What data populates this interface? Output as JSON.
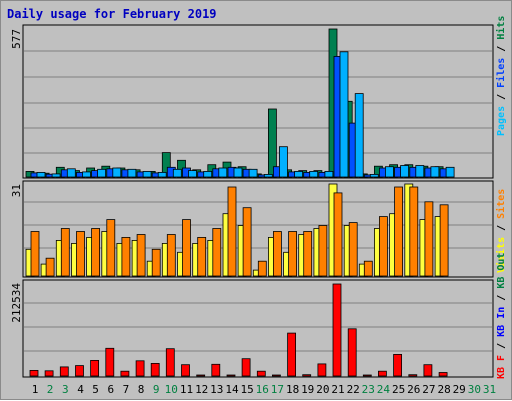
{
  "title": "Daily usage for February 2019",
  "chart_data": [
    {
      "type": "bar",
      "panel": "top",
      "y_max_label": "577",
      "ylim": [
        0,
        577
      ],
      "legend": [
        {
          "label": "Pages",
          "color": "#00c0ff"
        },
        {
          "label": "Files",
          "color": "#0040ff"
        },
        {
          "label": "Hits",
          "color": "#008040"
        }
      ],
      "categories": [
        "1",
        "2",
        "3",
        "4",
        "5",
        "6",
        "7",
        "8",
        "9",
        "10",
        "11",
        "12",
        "13",
        "14",
        "15",
        "16",
        "17",
        "18",
        "19",
        "20",
        "21",
        "22",
        "23",
        "24",
        "25",
        "26",
        "27",
        "28",
        "29",
        "30",
        "31"
      ],
      "series": [
        {
          "name": "Hits",
          "color": "#008050",
          "values": [
            22,
            15,
            38,
            25,
            35,
            42,
            35,
            28,
            22,
            95,
            65,
            28,
            48,
            58,
            40,
            12,
            265,
            28,
            25,
            25,
            577,
            295,
            12,
            42,
            48,
            48,
            42,
            40,
            0,
            0,
            0
          ]
        },
        {
          "name": "Files",
          "color": "#0050ff",
          "values": [
            16,
            11,
            28,
            18,
            25,
            32,
            28,
            20,
            16,
            38,
            35,
            20,
            32,
            38,
            30,
            8,
            40,
            20,
            18,
            18,
            470,
            210,
            8,
            35,
            38,
            38,
            35,
            32,
            0,
            0,
            0
          ]
        },
        {
          "name": "Pages",
          "color": "#00b0ff",
          "values": [
            18,
            12,
            32,
            20,
            30,
            35,
            30,
            22,
            18,
            30,
            25,
            22,
            35,
            35,
            30,
            10,
            118,
            22,
            22,
            22,
            488,
            325,
            10,
            40,
            45,
            45,
            40,
            38,
            0,
            0,
            0
          ]
        }
      ]
    },
    {
      "type": "bar",
      "panel": "middle",
      "y_max_label": "31",
      "ylim": [
        0,
        31
      ],
      "legend": [
        {
          "label": "Visits",
          "color": "#ffff00"
        },
        {
          "label": "Sites",
          "color": "#ff8000"
        }
      ],
      "categories": [
        "1",
        "2",
        "3",
        "4",
        "5",
        "6",
        "7",
        "8",
        "9",
        "10",
        "11",
        "12",
        "13",
        "14",
        "15",
        "16",
        "17",
        "18",
        "19",
        "20",
        "21",
        "22",
        "23",
        "24",
        "25",
        "26",
        "27",
        "28",
        "29",
        "30",
        "31"
      ],
      "series": [
        {
          "name": "Visits",
          "color": "#ffff40",
          "values": [
            9,
            4,
            12,
            11,
            13,
            15,
            11,
            12,
            5,
            11,
            8,
            11,
            12,
            21,
            17,
            2,
            13,
            8,
            14,
            16,
            31,
            17,
            4,
            16,
            21,
            31,
            19,
            20,
            0,
            0,
            0
          ]
        },
        {
          "name": "Sites",
          "color": "#ff8000",
          "values": [
            15,
            6,
            16,
            15,
            16,
            19,
            13,
            14,
            9,
            14,
            19,
            13,
            16,
            30,
            23,
            5,
            15,
            15,
            15,
            17,
            28,
            18,
            5,
            20,
            30,
            30,
            25,
            24,
            0,
            0,
            0
          ]
        }
      ]
    },
    {
      "type": "bar",
      "panel": "bottom",
      "y_max_label": "212534",
      "ylim": [
        0,
        212534
      ],
      "legend": [
        {
          "label": "KB F",
          "color": "#ff0000"
        },
        {
          "label": "KB In",
          "color": "#0000ff"
        },
        {
          "label": "KB Out",
          "color": "#008040"
        }
      ],
      "categories": [
        "1",
        "2",
        "3",
        "4",
        "5",
        "6",
        "7",
        "8",
        "9",
        "10",
        "11",
        "12",
        "13",
        "14",
        "15",
        "16",
        "17",
        "18",
        "19",
        "20",
        "21",
        "22",
        "23",
        "24",
        "25",
        "26",
        "27",
        "28",
        "29",
        "30",
        "31"
      ],
      "series": [
        {
          "name": "KB F",
          "color": "#ff0000",
          "values": [
            13000,
            12000,
            21000,
            24000,
            36000,
            64000,
            11000,
            35000,
            29000,
            63000,
            26000,
            2000,
            27000,
            2000,
            40000,
            11000,
            2000,
            99000,
            3000,
            28000,
            212534,
            109000,
            2000,
            11000,
            50000,
            3000,
            26000,
            8000,
            0,
            0,
            0
          ]
        }
      ]
    }
  ],
  "x_axis": {
    "labels": [
      "1",
      "2",
      "3",
      "4",
      "5",
      "6",
      "7",
      "8",
      "9",
      "10",
      "11",
      "12",
      "13",
      "14",
      "15",
      "16",
      "17",
      "18",
      "19",
      "20",
      "21",
      "22",
      "23",
      "24",
      "25",
      "26",
      "27",
      "28",
      "29",
      "30",
      "31"
    ],
    "weekend_days": [
      "2",
      "3",
      "9",
      "10",
      "16",
      "17",
      "23",
      "24",
      "30",
      "31"
    ],
    "weekday_color": "#000000",
    "weekend_color": "#008040"
  }
}
